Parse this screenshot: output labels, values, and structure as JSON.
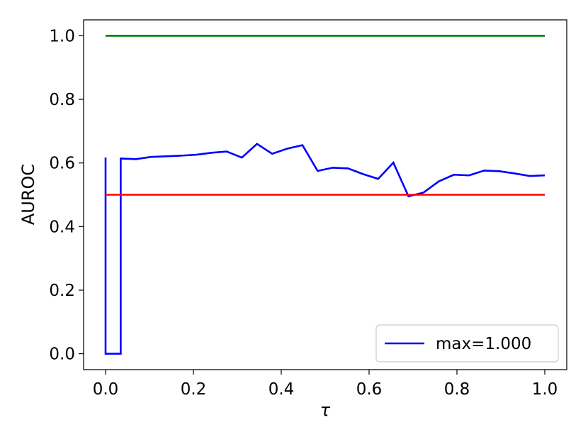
{
  "chart_data": {
    "type": "line",
    "title": "",
    "xlabel": "τ",
    "ylabel": "AUROC",
    "xlim": [
      -0.05,
      1.05
    ],
    "ylim": [
      -0.05,
      1.05
    ],
    "xticks": [
      0.0,
      0.2,
      0.4,
      0.6,
      0.8,
      1.0
    ],
    "xtick_labels": [
      "0.0",
      "0.2",
      "0.4",
      "0.6",
      "0.8",
      "1.0"
    ],
    "yticks": [
      0.0,
      0.2,
      0.4,
      0.6,
      0.8,
      1.0
    ],
    "ytick_labels": [
      "0.0",
      "0.2",
      "0.4",
      "0.6",
      "0.8",
      "1.0"
    ],
    "grid": false,
    "legend": {
      "placement": "lower-right",
      "entries": [
        "max=1.000"
      ]
    },
    "series": [
      {
        "name": "max=1.000",
        "color": "#0000ff",
        "x": [
          0.0,
          0.0,
          0.0345,
          0.0345,
          0.069,
          0.1034,
          0.1379,
          0.1724,
          0.2069,
          0.2414,
          0.2759,
          0.3103,
          0.3448,
          0.3793,
          0.4138,
          0.4483,
          0.4828,
          0.5172,
          0.5517,
          0.5862,
          0.6207,
          0.6552,
          0.6897,
          0.7241,
          0.7586,
          0.7931,
          0.8276,
          0.8621,
          0.8966,
          0.931,
          0.9655,
          1.0
        ],
        "y": [
          0.617,
          0.0,
          0.0,
          0.614,
          0.612,
          0.619,
          0.621,
          0.623,
          0.626,
          0.632,
          0.636,
          0.617,
          0.66,
          0.629,
          0.645,
          0.656,
          0.575,
          0.585,
          0.583,
          0.565,
          0.55,
          0.601,
          0.495,
          0.507,
          0.542,
          0.563,
          0.561,
          0.576,
          0.574,
          0.567,
          0.559,
          0.561
        ]
      },
      {
        "name": "",
        "color": "#008000",
        "x": [
          0.0,
          1.0
        ],
        "y": [
          1.0,
          1.0
        ]
      },
      {
        "name": "",
        "color": "#ff0000",
        "x": [
          0.0,
          1.0
        ],
        "y": [
          0.5,
          0.5
        ]
      }
    ]
  }
}
